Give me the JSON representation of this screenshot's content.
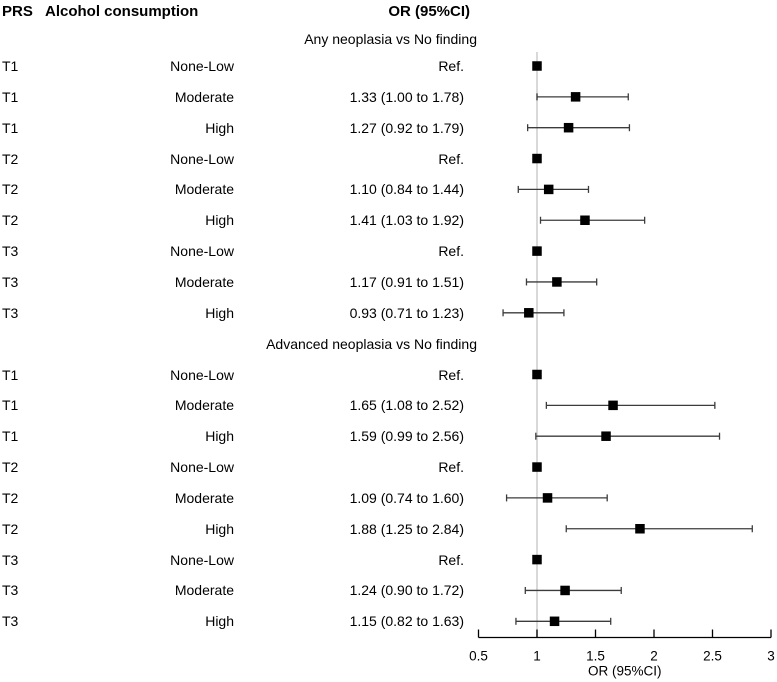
{
  "title_row": {
    "prs": "PRS",
    "alcohol": "Alcohol consumption",
    "or_ci": "OR (95%CI)"
  },
  "chart_data": {
    "type": "forest",
    "x_axis": {
      "label": "OR (95%CI)",
      "ticks": [
        "0.5",
        "1",
        "1.5",
        "2",
        "2.5",
        "3"
      ],
      "tick_values": [
        0.5,
        1,
        1.5,
        2,
        2.5,
        3
      ],
      "range": [
        0.5,
        3
      ],
      "reference_line": 1
    },
    "columns": [
      "PRS",
      "Alcohol consumption",
      "OR (95%CI)"
    ],
    "groups": [
      {
        "title": "Any neoplasia vs No finding",
        "rows": [
          {
            "prs": "T1",
            "alcohol": "None-Low",
            "or_text": "Ref.",
            "or": 1.0,
            "lo": null,
            "hi": null,
            "is_ref": true
          },
          {
            "prs": "T1",
            "alcohol": "Moderate",
            "or_text": "1.33 (1.00 to 1.78)",
            "or": 1.33,
            "lo": 1.0,
            "hi": 1.78,
            "is_ref": false
          },
          {
            "prs": "T1",
            "alcohol": "High",
            "or_text": "1.27 (0.92 to 1.79)",
            "or": 1.27,
            "lo": 0.92,
            "hi": 1.79,
            "is_ref": false
          },
          {
            "prs": "T2",
            "alcohol": "None-Low",
            "or_text": "Ref.",
            "or": 1.0,
            "lo": null,
            "hi": null,
            "is_ref": true
          },
          {
            "prs": "T2",
            "alcohol": "Moderate",
            "or_text": "1.10 (0.84 to 1.44)",
            "or": 1.1,
            "lo": 0.84,
            "hi": 1.44,
            "is_ref": false
          },
          {
            "prs": "T2",
            "alcohol": "High",
            "or_text": "1.41 (1.03 to 1.92)",
            "or": 1.41,
            "lo": 1.03,
            "hi": 1.92,
            "is_ref": false
          },
          {
            "prs": "T3",
            "alcohol": "None-Low",
            "or_text": "Ref.",
            "or": 1.0,
            "lo": null,
            "hi": null,
            "is_ref": true
          },
          {
            "prs": "T3",
            "alcohol": "Moderate",
            "or_text": "1.17 (0.91 to 1.51)",
            "or": 1.17,
            "lo": 0.91,
            "hi": 1.51,
            "is_ref": false
          },
          {
            "prs": "T3",
            "alcohol": "High",
            "or_text": "0.93 (0.71 to 1.23)",
            "or": 0.93,
            "lo": 0.71,
            "hi": 1.23,
            "is_ref": false
          }
        ]
      },
      {
        "title": "Advanced neoplasia vs No finding",
        "rows": [
          {
            "prs": "T1",
            "alcohol": "None-Low",
            "or_text": "Ref.",
            "or": 1.0,
            "lo": null,
            "hi": null,
            "is_ref": true
          },
          {
            "prs": "T1",
            "alcohol": "Moderate",
            "or_text": "1.65 (1.08 to 2.52)",
            "or": 1.65,
            "lo": 1.08,
            "hi": 2.52,
            "is_ref": false
          },
          {
            "prs": "T1",
            "alcohol": "High",
            "or_text": "1.59 (0.99 to 2.56)",
            "or": 1.59,
            "lo": 0.99,
            "hi": 2.56,
            "is_ref": false
          },
          {
            "prs": "T2",
            "alcohol": "None-Low",
            "or_text": "Ref.",
            "or": 1.0,
            "lo": null,
            "hi": null,
            "is_ref": true
          },
          {
            "prs": "T2",
            "alcohol": "Moderate",
            "or_text": "1.09 (0.74 to 1.60)",
            "or": 1.09,
            "lo": 0.74,
            "hi": 1.6,
            "is_ref": false
          },
          {
            "prs": "T2",
            "alcohol": "High",
            "or_text": "1.88 (1.25 to 2.84)",
            "or": 1.88,
            "lo": 1.25,
            "hi": 2.84,
            "is_ref": false
          },
          {
            "prs": "T3",
            "alcohol": "None-Low",
            "or_text": "Ref.",
            "or": 1.0,
            "lo": null,
            "hi": null,
            "is_ref": true
          },
          {
            "prs": "T3",
            "alcohol": "Moderate",
            "or_text": "1.24 (0.90 to 1.72)",
            "or": 1.24,
            "lo": 0.9,
            "hi": 1.72,
            "is_ref": false
          },
          {
            "prs": "T3",
            "alcohol": "High",
            "or_text": "1.15 (0.82 to 1.63)",
            "or": 1.15,
            "lo": 0.82,
            "hi": 1.63,
            "is_ref": false
          }
        ]
      }
    ],
    "colors": {
      "marker": "#000000",
      "ci_line": "#3c3c3c",
      "reference_line": "#d9d9d9",
      "axis": "#000000",
      "text": "#000000"
    }
  }
}
